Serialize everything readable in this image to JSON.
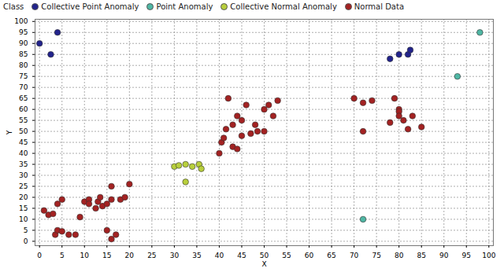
{
  "chart_data": {
    "type": "scatter",
    "legend_title": "Class",
    "legend": "top",
    "x_label": "X",
    "y_label": "Y",
    "xlim": [
      -1,
      101
    ],
    "ylim": [
      -2,
      101
    ],
    "xticks": [
      0,
      5,
      10,
      15,
      20,
      25,
      30,
      35,
      40,
      45,
      50,
      55,
      60,
      65,
      70,
      75,
      80,
      85,
      90,
      95,
      100
    ],
    "yticks": [
      0,
      5,
      10,
      15,
      20,
      25,
      30,
      35,
      40,
      45,
      50,
      55,
      60,
      65,
      70,
      75,
      80,
      85,
      90,
      95,
      100
    ],
    "grid": true,
    "series": [
      {
        "name": "Collective Point Anomaly",
        "color": "#22238c",
        "values": [
          [
            0,
            90
          ],
          [
            4,
            95
          ],
          [
            2.5,
            85
          ],
          [
            78,
            83
          ],
          [
            80,
            85
          ],
          [
            82,
            85
          ],
          [
            82.5,
            87
          ]
        ]
      },
      {
        "name": "Point Anomaly",
        "color": "#4fb7a4",
        "values": [
          [
            98,
            95
          ],
          [
            93,
            75
          ],
          [
            72,
            10
          ]
        ]
      },
      {
        "name": "Collective Normal Anomaly",
        "color": "#b8cf3c",
        "values": [
          [
            30,
            34
          ],
          [
            31,
            34.5
          ],
          [
            32.5,
            35
          ],
          [
            32.5,
            27
          ],
          [
            34,
            34
          ],
          [
            35.5,
            35
          ],
          [
            36,
            33
          ]
        ]
      },
      {
        "name": "Normal Data",
        "color": "#a32222",
        "values": [
          [
            1,
            14
          ],
          [
            2,
            12
          ],
          [
            3,
            12.5
          ],
          [
            4,
            17
          ],
          [
            5,
            19
          ],
          [
            3.5,
            3
          ],
          [
            4,
            5
          ],
          [
            5,
            4.5
          ],
          [
            6.5,
            3
          ],
          [
            8,
            3
          ],
          [
            9,
            11
          ],
          [
            10,
            18
          ],
          [
            11,
            19
          ],
          [
            11,
            17
          ],
          [
            12.5,
            15
          ],
          [
            13,
            18
          ],
          [
            13.5,
            20
          ],
          [
            14,
            16
          ],
          [
            15,
            17
          ],
          [
            15,
            5
          ],
          [
            16,
            25
          ],
          [
            16,
            19
          ],
          [
            16,
            1
          ],
          [
            17,
            3
          ],
          [
            18,
            19
          ],
          [
            19,
            20
          ],
          [
            20,
            26
          ],
          [
            40,
            40
          ],
          [
            40.5,
            45
          ],
          [
            41,
            47
          ],
          [
            41.5,
            51
          ],
          [
            42,
            65
          ],
          [
            43,
            43
          ],
          [
            43,
            53
          ],
          [
            44,
            57
          ],
          [
            44,
            42
          ],
          [
            45,
            48
          ],
          [
            45,
            55
          ],
          [
            46,
            62
          ],
          [
            47,
            49
          ],
          [
            48,
            53
          ],
          [
            48.5,
            50
          ],
          [
            50,
            50
          ],
          [
            50,
            60
          ],
          [
            51,
            62
          ],
          [
            52,
            57
          ],
          [
            53,
            64
          ],
          [
            70,
            65
          ],
          [
            72,
            63
          ],
          [
            74,
            64
          ],
          [
            72,
            50
          ],
          [
            78,
            54
          ],
          [
            79,
            65
          ],
          [
            80,
            60
          ],
          [
            80,
            59
          ],
          [
            80,
            57
          ],
          [
            81,
            55
          ],
          [
            82,
            51
          ],
          [
            83,
            57
          ],
          [
            85,
            52
          ]
        ]
      }
    ]
  }
}
